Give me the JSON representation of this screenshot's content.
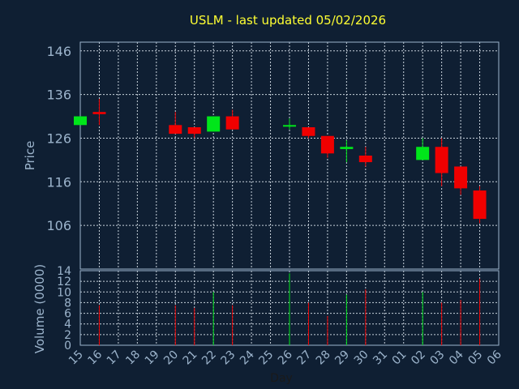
{
  "chart_data": {
    "type": "candlestick",
    "title": "USLM - last updated 05/02/2026",
    "ylabel": "Price",
    "volume_label": "Volume (0000)",
    "xlabel": "Day",
    "ylim": [
      96,
      148
    ],
    "yticks": [
      106,
      116,
      126,
      136,
      146
    ],
    "vol_ylim": [
      0,
      14
    ],
    "vol_yticks": [
      0,
      2,
      4,
      6,
      8,
      10,
      12,
      14
    ],
    "grid": true,
    "x_labels": [
      "15",
      "16",
      "17",
      "18",
      "19",
      "20",
      "21",
      "22",
      "23",
      "24",
      "25",
      "26",
      "27",
      "28",
      "29",
      "30",
      "31",
      "01",
      "02",
      "03",
      "04",
      "05",
      "06"
    ],
    "candles": [
      {
        "x": "15",
        "open": 129,
        "close": 131,
        "high": 131,
        "low": 129,
        "volume": null
      },
      {
        "x": "16",
        "open": 132,
        "close": 131.5,
        "high": 135,
        "low": 129,
        "volume": 7.5
      },
      {
        "x": "20",
        "open": 129,
        "close": 127,
        "high": 132,
        "low": 127,
        "volume": 7.5
      },
      {
        "x": "21",
        "open": 128.5,
        "close": 127,
        "high": 128.5,
        "low": 126,
        "volume": 7
      },
      {
        "x": "22",
        "open": 127.5,
        "close": 131,
        "high": 131,
        "low": 127.5,
        "volume": 10
      },
      {
        "x": "23",
        "open": 131,
        "close": 128,
        "high": 132.5,
        "low": 128,
        "volume": 7.5
      },
      {
        "x": "26",
        "open": 128.7,
        "close": 129,
        "high": 130.5,
        "low": 128,
        "volume": 13.5
      },
      {
        "x": "27",
        "open": 128.5,
        "close": 126.5,
        "high": 128.5,
        "low": 126,
        "volume": 8
      },
      {
        "x": "28",
        "open": 126.5,
        "close": 122.5,
        "high": 126.5,
        "low": 121.5,
        "volume": 5.5
      },
      {
        "x": "29",
        "open": 123.5,
        "close": 124,
        "high": 125.5,
        "low": 120.5,
        "volume": 9.5
      },
      {
        "x": "30",
        "open": 122,
        "close": 120.5,
        "high": 124,
        "low": 119.5,
        "volume": 10.5
      },
      {
        "x": "02",
        "open": 121,
        "close": 124,
        "high": 126,
        "low": 121,
        "volume": 10
      },
      {
        "x": "03",
        "open": 124,
        "close": 118,
        "high": 126,
        "low": 115,
        "volume": 8
      },
      {
        "x": "04",
        "open": 119.5,
        "close": 114.5,
        "high": 119.5,
        "low": 113,
        "volume": 8.5
      },
      {
        "x": "05",
        "open": 114,
        "close": 107.5,
        "high": 115,
        "low": 106.5,
        "volume": 12.5
      }
    ],
    "colors": {
      "up": "#00e61a",
      "down": "#f00000",
      "background": "#0f1f33",
      "grid": "#c8d2dc",
      "frame": "#9cb4cc"
    }
  }
}
